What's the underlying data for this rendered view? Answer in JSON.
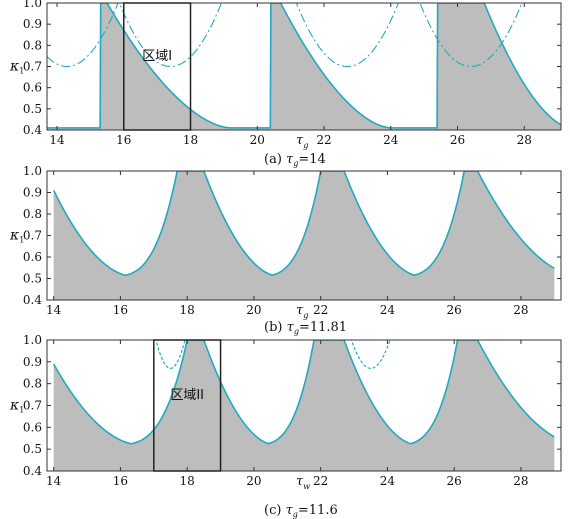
{
  "chart_data": [
    {
      "type": "area",
      "panel": "a",
      "caption_prefix": "(a) ",
      "caption_sym": "τ",
      "caption_sub": "g",
      "caption_value": "=14",
      "xlabel_sym": "τ",
      "xlabel_sub": "g",
      "ylabel_sym": "κ",
      "ylabel_sub": "1",
      "xlim": [
        13.7,
        29.1
      ],
      "ylim": [
        0.4,
        1.0
      ],
      "xticks": [
        14,
        16,
        18,
        20,
        22,
        24,
        26,
        28
      ],
      "yticks": [
        0.4,
        0.5,
        0.6,
        0.7,
        0.8,
        0.9,
        1.0
      ],
      "period": 5.35,
      "lobes": [
        {
          "rise": 15.3,
          "peak": 15.5,
          "trough": 19.2,
          "min": 0.41
        },
        {
          "rise": 20.4,
          "peak": 20.7,
          "trough": 24.0,
          "min": 0.41
        },
        {
          "rise": 25.4,
          "peak": 26.8,
          "trough": 29.4,
          "min": 0.41
        }
      ],
      "upper_threshold": 0.7,
      "regions": [
        {
          "label": "区域I",
          "x": [
            16,
            18
          ],
          "y": [
            0.4,
            1.0
          ]
        }
      ]
    },
    {
      "type": "area",
      "panel": "b",
      "caption_prefix": "(b) ",
      "caption_sym": "τ",
      "caption_sub": "g",
      "caption_value": "=11.81",
      "xlabel_sym": "τ",
      "xlabel_sub": "g",
      "ylabel_sym": "κ",
      "ylabel_sub": "1",
      "xlim": [
        13.8,
        29.2
      ],
      "ylim": [
        0.4,
        1.0
      ],
      "xticks": [
        14,
        16,
        18,
        20,
        22,
        24,
        26,
        28
      ],
      "yticks": [
        0.4,
        0.5,
        0.6,
        0.7,
        0.8,
        0.9,
        1.0
      ],
      "period": 4.2,
      "start": {
        "x": 14.0,
        "y": 0.91
      },
      "min": 0.51,
      "plateaus": [
        [
          17.7,
          18.5
        ],
        [
          22.0,
          22.7
        ],
        [
          26.3,
          26.7
        ]
      ],
      "regions": []
    },
    {
      "type": "area",
      "panel": "c",
      "caption_prefix": "(c) ",
      "caption_sym": "τ",
      "caption_sub": "g",
      "caption_value": "=11.6",
      "xlabel_sym": "τ",
      "xlabel_sub": "w",
      "ylabel_sym": "κ",
      "ylabel_sub": "1",
      "xlim": [
        13.8,
        29.2
      ],
      "ylim": [
        0.4,
        1.0
      ],
      "xticks": [
        14,
        16,
        18,
        20,
        22,
        24,
        26,
        28
      ],
      "yticks": [
        0.4,
        0.5,
        0.6,
        0.7,
        0.8,
        0.9,
        1.0
      ],
      "period": 4.2,
      "start": {
        "x": 14.0,
        "y": 0.89
      },
      "min": 0.52,
      "plateaus": [
        [
          18.0,
          18.5
        ],
        [
          21.8,
          22.7
        ],
        [
          26.1,
          26.7
        ]
      ],
      "dashed_dips": [
        {
          "center": 17.5,
          "width": 0.45,
          "min": 0.87
        },
        {
          "center": 23.5,
          "width": 0.6,
          "min": 0.87
        }
      ],
      "regions": [
        {
          "label": "区域II",
          "x": [
            17,
            19
          ],
          "y": [
            0.4,
            1.0
          ]
        }
      ]
    }
  ],
  "colors": {
    "fill": "#bdbdbd",
    "curve": "#21a9c0",
    "frame": "#333333",
    "region_box": "#222222"
  }
}
